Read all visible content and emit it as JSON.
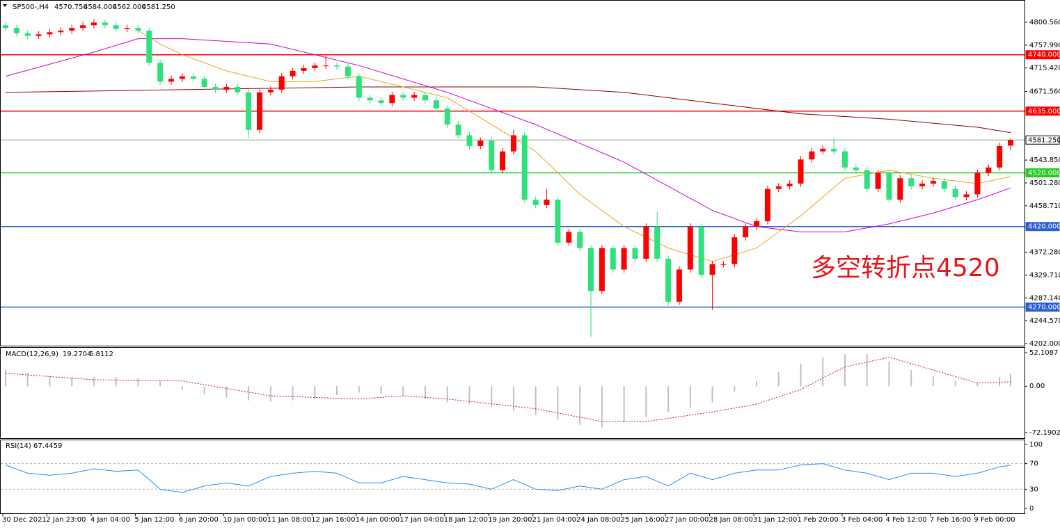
{
  "chart_data": [
    {
      "type": "candlestick",
      "title": "SP500-,H4",
      "header_labels": [
        "4570.750",
        "4584.000",
        "4562.000",
        "4581.250"
      ],
      "categories": [
        "30 Dec 2021",
        null,
        null,
        null,
        "2 Jan 23:00",
        null,
        null,
        null,
        "4 Jan 04:00",
        null,
        null,
        null,
        "5 Jan 12:00",
        null,
        null,
        null,
        "6 Jan 20:00",
        null,
        null,
        null,
        "10 Jan 00:00",
        null,
        null,
        null,
        "11 Jan 08:00",
        null,
        null,
        null,
        "12 Jan 16:00",
        null,
        null,
        null,
        "14 Jan 00:00",
        null,
        null,
        null,
        "17 Jan 04:00",
        null,
        null,
        null,
        "18 Jan 12:00",
        null,
        null,
        null,
        "19 Jan 20:00",
        null,
        null,
        null,
        "21 Jan 04:00",
        null,
        null,
        null,
        "24 Jan 08:00",
        null,
        null,
        null,
        "25 Jan 16:00",
        null,
        null,
        null,
        "27 Jan 00:00",
        null,
        null,
        null,
        "28 Jan 08:00",
        null,
        null,
        null,
        "31 Jan 12:00",
        null,
        null,
        null,
        "1 Feb 20:00",
        null,
        null,
        null,
        "3 Feb 04:00",
        null,
        null,
        null,
        "4 Feb 12:00",
        null,
        null,
        null,
        "7 Feb 16:00",
        null,
        null,
        null,
        "9 Feb 00:00",
        null,
        null,
        null
      ],
      "open": [
        4795,
        4790,
        4780,
        4775,
        4778,
        4782,
        4785,
        4790,
        4795,
        4800,
        4795,
        4788,
        4790,
        4785,
        4725,
        4690,
        4695,
        4700,
        4695,
        4680,
        4675,
        4680,
        4670,
        4600,
        4670,
        4675,
        4700,
        4710,
        4715,
        4720,
        4720,
        4718,
        4700,
        4660,
        4655,
        4650,
        4665,
        4660,
        4665,
        4655,
        4640,
        4610,
        4590,
        4570,
        4580,
        4525,
        4560,
        4590,
        4470,
        4460,
        4470,
        4390,
        4410,
        4380,
        4300,
        4380,
        4340,
        4380,
        4360,
        4420,
        4360,
        4280,
        4340,
        4420,
        4330,
        4350,
        4350,
        4400,
        4420,
        4430,
        4490,
        4495,
        4500,
        4545,
        4560,
        4565,
        4560,
        4530,
        4525,
        4490,
        4520,
        4470,
        4510,
        4495,
        4500,
        4505,
        4490,
        4475,
        4480,
        4520,
        4530,
        4570.75
      ],
      "high": [
        4801,
        4796,
        4786,
        4784,
        4788,
        4791,
        4796,
        4801,
        4806,
        4805,
        4801,
        4796,
        4796,
        4791,
        4731,
        4701,
        4706,
        4706,
        4701,
        4686,
        4686,
        4686,
        4676,
        4676,
        4681,
        4706,
        4716,
        4721,
        4726,
        4738,
        4726,
        4724,
        4706,
        4666,
        4661,
        4671,
        4671,
        4671,
        4671,
        4661,
        4646,
        4616,
        4596,
        4586,
        4586,
        4566,
        4600,
        4596,
        4476,
        4490,
        4476,
        4416,
        4416,
        4386,
        4386,
        4386,
        4386,
        4386,
        4426,
        4448,
        4366,
        4346,
        4426,
        4426,
        4356,
        4356,
        4406,
        4426,
        4436,
        4496,
        4501,
        4506,
        4551,
        4566,
        4571,
        4585,
        4566,
        4536,
        4531,
        4526,
        4526,
        4516,
        4516,
        4506,
        4511,
        4511,
        4496,
        4486,
        4526,
        4536,
        4576,
        4584
      ],
      "low": [
        4784,
        4774,
        4769,
        4769,
        4772,
        4776,
        4779,
        4784,
        4789,
        4789,
        4782,
        4782,
        4779,
        4719,
        4684,
        4684,
        4689,
        4689,
        4674,
        4669,
        4669,
        4664,
        4585,
        4594,
        4664,
        4669,
        4694,
        4704,
        4709,
        4714,
        4712,
        4694,
        4654,
        4649,
        4644,
        4644,
        4654,
        4654,
        4649,
        4634,
        4604,
        4584,
        4564,
        4564,
        4519,
        4519,
        4554,
        4464,
        4454,
        4454,
        4384,
        4384,
        4374,
        4215,
        4294,
        4334,
        4334,
        4354,
        4354,
        4354,
        4272,
        4274,
        4334,
        4324,
        4265,
        4344,
        4344,
        4394,
        4414,
        4424,
        4484,
        4489,
        4494,
        4539,
        4554,
        4554,
        4524,
        4519,
        4484,
        4484,
        4464,
        4464,
        4489,
        4489,
        4494,
        4484,
        4469,
        4469,
        4474,
        4514,
        4524,
        4562
      ],
      "close": [
        4790,
        4780,
        4775,
        4778,
        4782,
        4785,
        4790,
        4795,
        4800,
        4795,
        4788,
        4790,
        4785,
        4725,
        4690,
        4695,
        4700,
        4695,
        4680,
        4675,
        4680,
        4670,
        4600,
        4670,
        4675,
        4700,
        4710,
        4715,
        4720,
        4720,
        4718,
        4700,
        4660,
        4655,
        4650,
        4665,
        4660,
        4665,
        4655,
        4640,
        4610,
        4590,
        4570,
        4580,
        4525,
        4560,
        4590,
        4470,
        4460,
        4470,
        4390,
        4410,
        4380,
        4300,
        4380,
        4340,
        4380,
        4360,
        4420,
        4360,
        4280,
        4340,
        4420,
        4330,
        4350,
        4350,
        4400,
        4420,
        4430,
        4490,
        4495,
        4500,
        4545,
        4560,
        4565,
        4560,
        4530,
        4525,
        4490,
        4520,
        4470,
        4510,
        4495,
        4500,
        4505,
        4490,
        4475,
        4480,
        4520,
        4530,
        4570,
        4581.25
      ],
      "up_color": "#ff0000",
      "down_color": "#2fe07c",
      "series": [
        {
          "color": "#8b0000",
          "x": [
            0,
            16,
            32,
            48,
            56,
            64,
            72,
            80,
            88,
            91
          ],
          "values": [
            4670,
            4675,
            4680,
            4680,
            4670,
            4650,
            4630,
            4620,
            4605,
            4595
          ]
        },
        {
          "color": "#cc00cc",
          "x": [
            0,
            8,
            12,
            16,
            24,
            32,
            40,
            48,
            56,
            64,
            68,
            72,
            76,
            80,
            84,
            88,
            91
          ],
          "values": [
            4700,
            4745,
            4770,
            4770,
            4760,
            4720,
            4670,
            4610,
            4540,
            4450,
            4420,
            4410,
            4410,
            4425,
            4445,
            4470,
            4492
          ]
        },
        {
          "color": "#f0a020",
          "x": [
            12,
            14,
            16,
            20,
            24,
            28,
            32,
            36,
            40,
            44,
            48,
            52,
            56,
            60,
            64,
            68,
            72,
            76,
            80,
            84,
            88,
            91
          ],
          "values": [
            4785,
            4760,
            4740,
            4710,
            4690,
            4690,
            4700,
            4680,
            4660,
            4610,
            4560,
            4480,
            4420,
            4380,
            4355,
            4380,
            4440,
            4510,
            4525,
            4510,
            4500,
            4513
          ]
        }
      ],
      "levels": [
        {
          "value": 4740,
          "label": "4740.000",
          "color": "#ff0000"
        },
        {
          "value": 4635,
          "label": "4635.000",
          "color": "#ff0000"
        },
        {
          "value": 4581.25,
          "label": "4581.250",
          "color": "#8aa08a"
        },
        {
          "value": 4520,
          "label": "4520.000",
          "color": "#22cc22"
        },
        {
          "value": 4420,
          "label": "4420.000",
          "color": "#2a5fd6"
        },
        {
          "value": 4270,
          "label": "4270.000",
          "color": "#2a5fd6"
        }
      ],
      "annotation": "多空转折点4520",
      "ylim": [
        4198.1,
        4842.0
      ],
      "yticks": [
        {
          "value": 4800.56,
          "label": "4800.560"
        },
        {
          "value": 4757.99,
          "label": "4757.990"
        },
        {
          "value": 4715.42,
          "label": "4715.420"
        },
        {
          "value": 4671.56,
          "label": "4671.560"
        },
        {
          "value": 4543.85,
          "label": "4543.850"
        },
        {
          "value": 4501.28,
          "label": "4501.280"
        },
        {
          "value": 4458.71,
          "label": "4458.710"
        },
        {
          "value": 4372.28,
          "label": "4372.280"
        },
        {
          "value": 4329.71,
          "label": "4329.710"
        },
        {
          "value": 4287.14,
          "label": "4287.140"
        },
        {
          "value": 4244.57,
          "label": "4244.570"
        },
        {
          "value": 4202,
          "label": "4202.000"
        }
      ]
    },
    {
      "type": "macd",
      "title": "MACD(12,26,9)",
      "x": [
        0,
        2,
        4,
        6,
        8,
        10,
        12,
        14,
        16,
        18,
        20,
        22,
        24,
        26,
        28,
        30,
        32,
        34,
        36,
        38,
        40,
        42,
        44,
        46,
        48,
        50,
        52,
        54,
        56,
        58,
        60,
        62,
        64,
        66,
        68,
        70,
        72,
        74,
        76,
        78,
        80,
        82,
        84,
        86,
        88,
        90,
        91
      ],
      "values": [
        25,
        20,
        16,
        14,
        14,
        14,
        13,
        8,
        -5,
        -12,
        -18,
        -22,
        -24,
        -22,
        -20,
        -14,
        -10,
        -12,
        -15,
        -20,
        -25,
        -28,
        -32,
        -38,
        -45,
        -52,
        -60,
        -64,
        -56,
        -48,
        -40,
        -33,
        -25,
        -8,
        8,
        22,
        35,
        45,
        50,
        50,
        38,
        25,
        15,
        8,
        5,
        14,
        19.2704
      ],
      "color": "#c0c0c0",
      "signal": {
        "color": "#d01010",
        "x": [
          0,
          8,
          16,
          24,
          32,
          36,
          40,
          48,
          54,
          58,
          64,
          68,
          72,
          76,
          80,
          84,
          88,
          91
        ],
        "values": [
          20,
          10,
          8,
          -15,
          -20,
          -15,
          -20,
          -35,
          -55,
          -55,
          -40,
          -28,
          -5,
          30,
          45,
          25,
          5,
          6.8112
        ]
      },
      "ylim": [
        -80.8,
        59.7
      ],
      "yticks": [
        52.1087,
        {
          "value": 0,
          "label": "0.00"
        },
        -72.1902
      ]
    },
    {
      "type": "line",
      "title": "RSI(14)",
      "x": [
        0,
        2,
        4,
        6,
        8,
        10,
        12,
        14,
        16,
        18,
        20,
        22,
        24,
        26,
        28,
        30,
        32,
        34,
        36,
        38,
        40,
        42,
        44,
        46,
        48,
        50,
        52,
        54,
        56,
        58,
        60,
        62,
        64,
        66,
        68,
        70,
        72,
        74,
        76,
        78,
        80,
        82,
        84,
        86,
        88,
        90,
        91
      ],
      "values": [
        68,
        55,
        52,
        55,
        62,
        58,
        60,
        30,
        25,
        35,
        40,
        35,
        50,
        55,
        58,
        55,
        40,
        40,
        50,
        45,
        40,
        38,
        30,
        45,
        30,
        28,
        35,
        30,
        45,
        50,
        35,
        55,
        45,
        55,
        60,
        60,
        68,
        70,
        60,
        55,
        45,
        55,
        55,
        50,
        55,
        65,
        67.4459
      ],
      "color": "#1e90ff",
      "levels": [
        70,
        30
      ],
      "ylim": [
        -7.6,
        107.6
      ],
      "yticks": [
        100,
        70,
        30,
        0
      ]
    }
  ]
}
